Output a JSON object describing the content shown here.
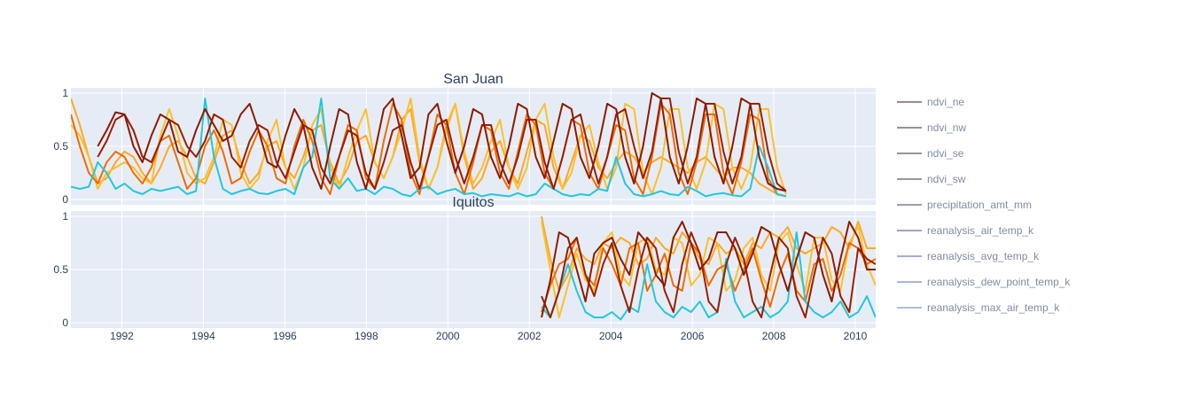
{
  "chart_data": {
    "type": "line",
    "x_ticks": [
      "1992",
      "1994",
      "1996",
      "1998",
      "2000",
      "2002",
      "2004",
      "2006",
      "2008",
      "2010"
    ],
    "x_range": [
      1990.75,
      2010.5
    ],
    "y_ticks": [
      "0",
      "0.5",
      "1"
    ],
    "y_range": [
      -0.05,
      1.05
    ],
    "grid": true,
    "legend_position": "right",
    "legend": [
      {
        "label": "ndvi_ne",
        "color": "#9b8a92"
      },
      {
        "label": "ndvi_nw",
        "color": "#9a8e98"
      },
      {
        "label": "ndvi_se",
        "color": "#9a929e"
      },
      {
        "label": "ndvi_sw",
        "color": "#9a96a6"
      },
      {
        "label": "precipitation_amt_mm",
        "color": "#9c9cb2"
      },
      {
        "label": "reanalysis_air_temp_k",
        "color": "#a0a6c2"
      },
      {
        "label": "reanalysis_avg_temp_k",
        "color": "#a4aed0"
      },
      {
        "label": "reanalysis_dew_point_temp_k",
        "color": "#a8b6dc"
      },
      {
        "label": "reanalysis_max_air_temp_k",
        "color": "#acbee6"
      }
    ],
    "subplots": [
      {
        "title": "San Juan",
        "x_start": 1990.75,
        "x_end": 2008.3,
        "series": [
          {
            "color": "#ffa726",
            "values": [
              0.95,
              0.7,
              0.4,
              0.15,
              0.2,
              0.35,
              0.45,
              0.4,
              0.25,
              0.15,
              0.3,
              0.5,
              0.55,
              0.4,
              0.2,
              0.15,
              0.35,
              0.6,
              0.65,
              0.35,
              0.15,
              0.25,
              0.5,
              0.55,
              0.3,
              0.2,
              0.4,
              0.65,
              0.7,
              0.35,
              0.15,
              0.3,
              0.55,
              0.6,
              0.35,
              0.2,
              0.4,
              0.75,
              0.85,
              0.35,
              0.1,
              0.3,
              0.7,
              0.9,
              0.4,
              0.1,
              0.2,
              0.45,
              0.55,
              0.3,
              0.15,
              0.45,
              0.75,
              0.7,
              0.3,
              0.1,
              0.35,
              0.6,
              0.55,
              0.3,
              0.2,
              0.35,
              0.45,
              0.4,
              0.25,
              0.35,
              0.4,
              0.35,
              0.3,
              0.25,
              0.35,
              0.4,
              0.3,
              0.2,
              0.3,
              0.3,
              0.25,
              0.15,
              0.1,
              0.05,
              0.03
            ]
          },
          {
            "color": "#fbc02d",
            "values": [
              0.7,
              0.6,
              0.4,
              0.1,
              0.25,
              0.3,
              0.35,
              0.3,
              0.2,
              0.15,
              0.6,
              0.85,
              0.6,
              0.25,
              0.15,
              0.2,
              0.4,
              0.75,
              0.7,
              0.25,
              0.1,
              0.2,
              0.55,
              0.75,
              0.3,
              0.1,
              0.3,
              0.7,
              0.85,
              0.3,
              0.1,
              0.4,
              0.65,
              0.85,
              0.35,
              0.2,
              0.4,
              0.65,
              0.95,
              0.4,
              0.1,
              0.3,
              0.65,
              0.9,
              0.45,
              0.15,
              0.3,
              0.55,
              0.75,
              0.3,
              0.1,
              0.3,
              0.75,
              0.9,
              0.4,
              0.1,
              0.25,
              0.6,
              0.7,
              0.35,
              0.1,
              0.3,
              0.9,
              0.85,
              0.25,
              0.05,
              0.3,
              0.85,
              0.85,
              0.3,
              0.1,
              0.35,
              0.9,
              0.85,
              0.3,
              0.1,
              0.3,
              0.85,
              0.85,
              0.3,
              0.05
            ]
          },
          {
            "color": "#ef6c00",
            "values": [
              0.8,
              0.5,
              0.25,
              0.15,
              0.35,
              0.45,
              0.4,
              0.25,
              0.15,
              0.3,
              0.55,
              0.6,
              0.35,
              0.1,
              0.2,
              0.5,
              0.65,
              0.45,
              0.15,
              0.2,
              0.45,
              0.65,
              0.5,
              0.2,
              0.15,
              0.5,
              0.75,
              0.55,
              0.2,
              0.05,
              0.4,
              0.7,
              0.65,
              0.2,
              0.1,
              0.55,
              0.9,
              0.75,
              0.25,
              0.05,
              0.4,
              0.8,
              0.7,
              0.25,
              0.05,
              0.35,
              0.7,
              0.65,
              0.25,
              0.1,
              0.45,
              0.8,
              0.7,
              0.25,
              0.1,
              0.4,
              0.75,
              0.7,
              0.25,
              0.1,
              0.4,
              0.7,
              0.65,
              0.2,
              0.05,
              0.4,
              0.9,
              0.8,
              0.25,
              0.05,
              0.35,
              0.8,
              0.8,
              0.25,
              0.05,
              0.35,
              0.8,
              0.75,
              0.2,
              0.05,
              0.03
            ]
          },
          {
            "color": "#26c6da",
            "values": [
              0.12,
              0.1,
              0.12,
              0.35,
              0.25,
              0.1,
              0.15,
              0.08,
              0.05,
              0.1,
              0.08,
              0.1,
              0.12,
              0.05,
              0.08,
              0.95,
              0.4,
              0.1,
              0.05,
              0.08,
              0.1,
              0.06,
              0.05,
              0.08,
              0.1,
              0.05,
              0.3,
              0.4,
              0.95,
              0.2,
              0.1,
              0.2,
              0.08,
              0.1,
              0.05,
              0.12,
              0.1,
              0.05,
              0.03,
              0.1,
              0.12,
              0.05,
              0.08,
              0.1,
              0.05,
              0.06,
              0.03,
              0.05,
              0.04,
              0.03,
              0.06,
              0.03,
              0.05,
              0.15,
              0.1,
              0.05,
              0.03,
              0.05,
              0.04,
              0.1,
              0.08,
              0.4,
              0.15,
              0.05,
              0.03,
              0.05,
              0.08,
              0.05,
              0.04,
              0.12,
              0.08,
              0.03,
              0.05,
              0.06,
              0.04,
              0.03,
              0.1,
              0.5,
              0.3,
              0.05,
              0.03
            ]
          },
          {
            "color": "#9a1f00",
            "values": [
              null,
              null,
              null,
              0.4,
              0.55,
              0.75,
              0.8,
              0.65,
              0.4,
              0.35,
              0.55,
              0.75,
              0.7,
              0.5,
              0.4,
              0.55,
              0.8,
              0.75,
              0.4,
              0.3,
              0.55,
              0.7,
              0.65,
              0.35,
              0.2,
              0.45,
              0.7,
              0.65,
              0.3,
              0.15,
              0.4,
              0.65,
              0.6,
              0.25,
              0.1,
              0.35,
              0.65,
              0.7,
              0.35,
              0.1,
              0.4,
              0.7,
              0.75,
              0.4,
              0.15,
              0.4,
              0.7,
              0.7,
              0.35,
              0.15,
              0.4,
              0.75,
              0.75,
              0.35,
              0.1,
              0.4,
              0.75,
              0.8,
              0.45,
              0.15,
              0.4,
              0.8,
              0.85,
              0.5,
              0.2,
              0.45,
              0.95,
              0.95,
              0.45,
              0.15,
              0.4,
              0.9,
              0.9,
              0.45,
              0.15,
              0.4,
              0.9,
              0.9,
              0.45,
              0.15,
              0.08
            ]
          },
          {
            "color": "#8b1a00",
            "values": [
              null,
              null,
              null,
              0.5,
              0.65,
              0.82,
              0.8,
              0.5,
              0.35,
              0.6,
              0.8,
              0.75,
              0.45,
              0.4,
              0.65,
              0.85,
              0.7,
              0.55,
              0.6,
              0.8,
              0.9,
              0.65,
              0.35,
              0.3,
              0.6,
              0.85,
              0.7,
              0.3,
              0.1,
              0.5,
              0.85,
              0.8,
              0.35,
              0.1,
              0.45,
              0.85,
              0.95,
              0.6,
              0.2,
              0.3,
              0.8,
              0.9,
              0.55,
              0.25,
              0.5,
              0.85,
              0.8,
              0.4,
              0.2,
              0.5,
              0.9,
              0.85,
              0.4,
              0.2,
              0.55,
              0.9,
              0.85,
              0.4,
              0.2,
              0.5,
              0.9,
              0.85,
              0.4,
              0.15,
              0.5,
              1.0,
              0.95,
              0.4,
              0.15,
              0.5,
              0.95,
              0.9,
              0.4,
              0.15,
              0.5,
              0.95,
              0.9,
              0.4,
              0.15,
              0.1,
              0.08
            ]
          }
        ]
      },
      {
        "title": "Iquitos",
        "x_start": 2002.3,
        "x_end": 2010.5,
        "series": [
          {
            "color": "#ffa726",
            "values": [
              1.0,
              0.6,
              0.3,
              0.45,
              0.7,
              0.6,
              0.55,
              0.75,
              0.7,
              0.8,
              0.75,
              0.55,
              0.6,
              0.8,
              0.7,
              0.65,
              0.85,
              0.75,
              0.6,
              0.55,
              0.75,
              0.65,
              0.7,
              0.55,
              0.75,
              0.7,
              0.85,
              0.8,
              0.9,
              0.7,
              0.65,
              0.7,
              0.75,
              0.9,
              0.85,
              0.7,
              0.95,
              0.7,
              0.7
            ]
          },
          {
            "color": "#fbc02d",
            "values": [
              0.95,
              0.5,
              0.05,
              0.35,
              0.65,
              0.4,
              0.3,
              0.75,
              0.85,
              0.45,
              0.35,
              0.75,
              0.8,
              0.5,
              0.45,
              0.8,
              0.75,
              0.35,
              0.45,
              0.8,
              0.75,
              0.3,
              0.4,
              0.7,
              0.8,
              0.45,
              0.3,
              0.75,
              0.85,
              0.55,
              0.3,
              0.8,
              0.8,
              0.4,
              0.3,
              0.75,
              0.9,
              0.55,
              0.35
            ]
          },
          {
            "color": "#ef6c00",
            "values": [
              0.1,
              0.35,
              0.55,
              0.6,
              0.8,
              0.45,
              0.35,
              0.7,
              0.55,
              0.35,
              0.7,
              0.75,
              0.3,
              0.45,
              0.65,
              0.35,
              0.3,
              0.75,
              0.65,
              0.35,
              0.5,
              0.55,
              0.3,
              0.5,
              0.7,
              0.4,
              0.15,
              0.45,
              0.65,
              0.3,
              0.2,
              0.55,
              0.6,
              0.3,
              0.45,
              0.75,
              0.7,
              0.55,
              0.6
            ]
          },
          {
            "color": "#26c6da",
            "values": [
              0.15,
              0.05,
              0.3,
              0.55,
              0.3,
              0.1,
              0.05,
              0.05,
              0.1,
              0.03,
              0.15,
              0.1,
              0.55,
              0.2,
              0.1,
              0.05,
              0.15,
              0.1,
              0.2,
              0.05,
              0.1,
              0.6,
              0.2,
              0.05,
              0.1,
              0.15,
              0.05,
              0.1,
              0.2,
              0.85,
              0.2,
              0.1,
              0.05,
              0.1,
              0.2,
              0.05,
              0.1,
              0.25,
              0.05
            ]
          },
          {
            "color": "#9a1f00",
            "values": [
              0.25,
              0.05,
              0.3,
              0.7,
              0.8,
              0.45,
              0.25,
              0.55,
              0.75,
              0.35,
              0.1,
              0.5,
              0.8,
              0.7,
              0.3,
              0.1,
              0.55,
              0.85,
              0.65,
              0.2,
              0.1,
              0.55,
              0.8,
              0.6,
              0.2,
              0.05,
              0.45,
              0.8,
              0.7,
              0.25,
              0.05,
              0.45,
              0.8,
              0.65,
              0.25,
              0.1,
              0.7,
              0.6,
              0.55
            ]
          },
          {
            "color": "#8b1a00",
            "values": [
              0.05,
              0.4,
              0.85,
              0.8,
              0.5,
              0.2,
              0.65,
              0.75,
              0.8,
              0.6,
              0.45,
              0.85,
              0.75,
              0.45,
              0.35,
              0.8,
              0.95,
              0.75,
              0.5,
              0.6,
              0.85,
              0.85,
              0.7,
              0.45,
              0.65,
              0.9,
              0.85,
              0.55,
              0.3,
              0.6,
              0.85,
              0.8,
              0.45,
              0.2,
              0.6,
              0.95,
              0.8,
              0.5,
              0.5
            ]
          }
        ]
      }
    ]
  }
}
